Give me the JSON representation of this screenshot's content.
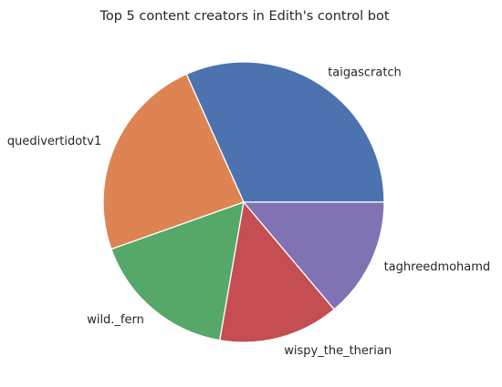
{
  "chart_data": {
    "type": "pie",
    "title": "Top 5 content creators in Edith's control bot",
    "labels": [
      "taigascratch",
      "quedivertidotv1",
      "wild._fern",
      "wispy_the_therian",
      "taghreedmohamd"
    ],
    "values": [
      32,
      24,
      17,
      14,
      14
    ],
    "colors": [
      "#4c72b0",
      "#dd8452",
      "#55a868",
      "#c44e52",
      "#8172b3"
    ],
    "start_angle_deg": 0,
    "direction": "counterclockwise",
    "legend": "none"
  }
}
